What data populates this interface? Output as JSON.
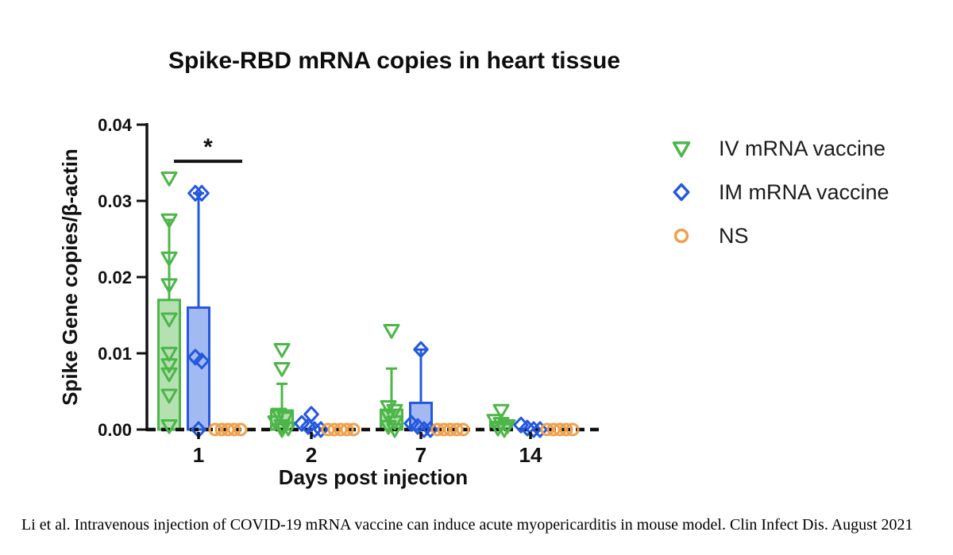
{
  "title": "Spike-RBD mRNA copies in heart tissue",
  "citation": "Li et al. Intravenous injection of COVID-19 mRNA vaccine can induce acute myopericarditis in mouse model. Clin Infect Dis. August 2021",
  "colors": {
    "iv_green": "#4cb648",
    "im_blue": "#2458e0",
    "ns_orange": "#f0a04b",
    "axis": "#111111"
  },
  "chart_data": {
    "type": "bar",
    "title": "Spike-RBD mRNA copies in heart tissue",
    "xlabel": "Days post injection",
    "ylabel": "Spike Gene copies/β-actin",
    "ylim": [
      0,
      0.04
    ],
    "yticks": [
      0,
      0.01,
      0.02,
      0.03,
      0.04
    ],
    "ytick_labels": [
      "0.00",
      "0.01",
      "0.02",
      "0.03",
      "0.04"
    ],
    "categories": [
      "1",
      "2",
      "7",
      "14"
    ],
    "grid": false,
    "legend_position": "right",
    "baseline_style": "dashed",
    "series": [
      {
        "name": "IV mRNA vaccine",
        "marker": "triangle-down-open",
        "color": "#4cb648",
        "bar_median": [
          0.017,
          0.0025,
          0.0026,
          0.001
        ],
        "whisker_upper": [
          0.0275,
          0.006,
          0.008,
          null
        ],
        "points": [
          [
            0.033,
            0.0275,
            0.0225,
            0.019,
            0.0145,
            0.01,
            0.0085,
            0.0073,
            0.0045,
            0.0005
          ],
          [
            0.0105,
            0.008,
            0.002,
            0.0015,
            0.001,
            0.0005,
            0.0002,
            0
          ],
          [
            0.013,
            0.003,
            0.0025,
            0.0018,
            0.001,
            0.0004,
            0
          ],
          [
            0.0025,
            0.0012,
            0.0008,
            0.0005,
            0.0002,
            0
          ]
        ]
      },
      {
        "name": "IM mRNA vaccine",
        "marker": "diamond-open",
        "color": "#2458e0",
        "bar_median": [
          0.016,
          0.0005,
          0.0035,
          0
        ],
        "whisker_upper": [
          0.031,
          null,
          0.0105,
          null
        ],
        "points": [
          [
            0.031,
            0.031,
            0.0095,
            0.009,
            0
          ],
          [
            0.002,
            0.0008,
            0.0004,
            0,
            0
          ],
          [
            0.0105,
            0.0008,
            0.0004,
            0,
            0
          ],
          [
            0.0006,
            0.0002,
            0,
            0
          ]
        ]
      },
      {
        "name": "NS",
        "marker": "circle-open",
        "color": "#f0a04b",
        "bar_median": [
          0,
          0,
          0,
          0
        ],
        "whisker_upper": [
          null,
          null,
          null,
          null
        ],
        "points": [
          [
            0,
            0,
            0,
            0,
            0
          ],
          [
            0,
            0,
            0,
            0,
            0
          ],
          [
            0,
            0,
            0,
            0,
            0
          ],
          [
            0,
            0,
            0,
            0,
            0
          ]
        ]
      }
    ],
    "significance": {
      "label": "*",
      "category": "1",
      "between": [
        "IV mRNA vaccine",
        "IM mRNA vaccine"
      ],
      "y": 0.0352
    }
  },
  "legend": {
    "items": [
      {
        "label": "IV mRNA vaccine"
      },
      {
        "label": "IM mRNA vaccine"
      },
      {
        "label": "NS"
      }
    ]
  }
}
